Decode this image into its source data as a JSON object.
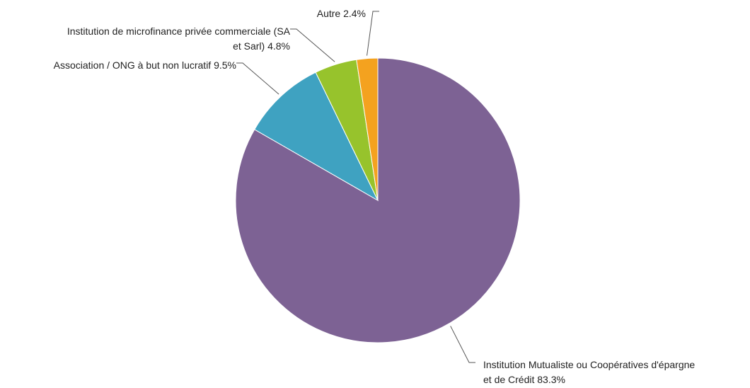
{
  "chart_data": {
    "type": "pie",
    "title": "",
    "start_angle": "12 o'clock, clockwise",
    "slices": [
      {
        "label_lines": [
          "Institution Mutualiste ou Coopératives d'épargne",
          "et de Crédit 83.3%"
        ],
        "value": 83.3,
        "color": "#7d6294"
      },
      {
        "label_lines": [
          "Association / ONG à but non lucratif 9.5%"
        ],
        "value": 9.5,
        "color": "#3fa2c1"
      },
      {
        "label_lines": [
          "Institution de microfinance privée commerciale (SA",
          "et Sarl) 4.8%"
        ],
        "value": 4.8,
        "color": "#97c32c"
      },
      {
        "label_lines": [
          "Autre 2.4%"
        ],
        "value": 2.4,
        "color": "#f4a21f"
      }
    ]
  }
}
